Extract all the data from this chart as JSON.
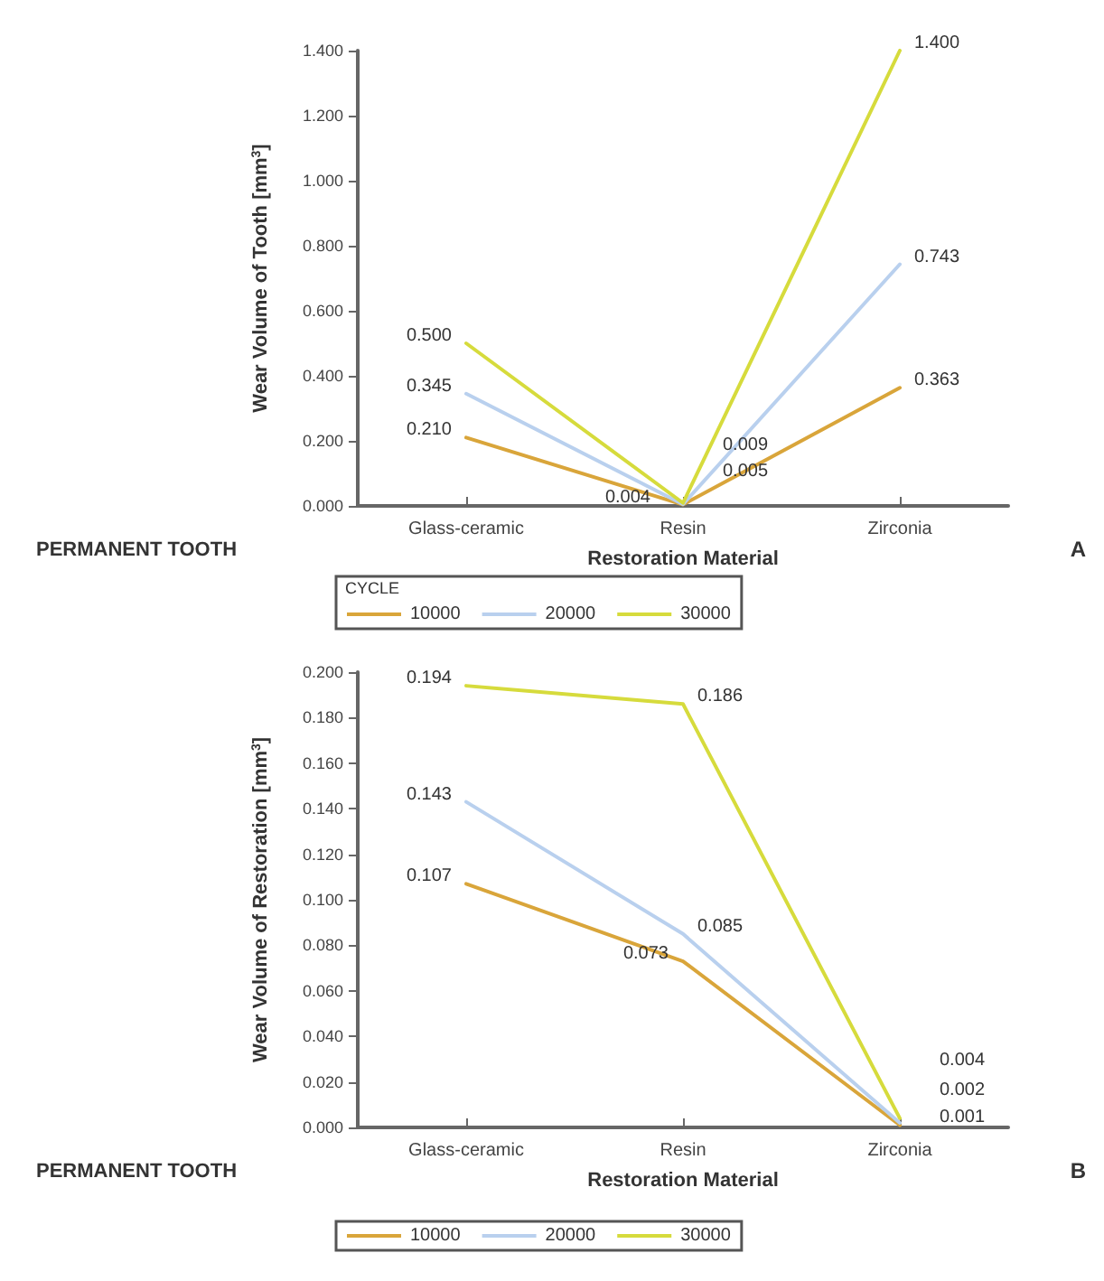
{
  "chart_data": [
    {
      "type": "line",
      "xlabel": "Restoration Material",
      "ylabel": "Wear Volume of Tooth [mm$^{3}$]",
      "legend_title": "CYCLE",
      "annotations": [
        "PERMANENT TOOTH",
        "A"
      ],
      "categories": [
        "Glass-ceramic",
        "Resin",
        "Zirconia"
      ],
      "series": [
        {
          "name": "10000",
          "color": "#d9a53a",
          "values": [
            0.21,
            0.004,
            0.363
          ]
        },
        {
          "name": "20000",
          "color": "#b9d0ee",
          "values": [
            0.345,
            0.005,
            0.743
          ]
        },
        {
          "name": "30000",
          "color": "#d6db3c",
          "values": [
            0.5,
            0.009,
            1.4
          ]
        }
      ],
      "ylim": [
        0,
        1.4
      ],
      "yticks": [
        {
          "value": 0,
          "label": "0.000"
        },
        {
          "value": 0.2,
          "label": "0.200"
        },
        {
          "value": 0.4,
          "label": "0.400"
        },
        {
          "value": 0.6,
          "label": "0.600"
        },
        {
          "value": 0.8,
          "label": "0.800"
        },
        {
          "value": 1,
          "label": "1.000"
        },
        {
          "value": 1.2,
          "label": "1.200"
        },
        {
          "value": 1.4,
          "label": "1.400"
        }
      ],
      "value_labels": [
        [
          "0.210",
          "0.004",
          "0.363"
        ],
        [
          "0.345",
          "0.005",
          "0.743"
        ],
        [
          "0.500",
          "0.009",
          "1.400"
        ]
      ],
      "legend": "bottom",
      "grid": false,
      "marker": "none",
      "line_style": "solid"
    },
    {
      "type": "line",
      "xlabel": "Restoration Material",
      "ylabel": "Wear Volume of Restoration [mm$^{3}$]",
      "annotations": [
        "PERMANENT TOOTH",
        "B"
      ],
      "categories": [
        "Glass-ceramic",
        "Resin",
        "Zirconia"
      ],
      "series": [
        {
          "name": "10000",
          "color": "#d9a53a",
          "values": [
            0.107,
            0.073,
            0.001
          ]
        },
        {
          "name": "20000",
          "color": "#b9d0ee",
          "values": [
            0.143,
            0.085,
            0.002
          ]
        },
        {
          "name": "30000",
          "color": "#d6db3c",
          "values": [
            0.194,
            0.186,
            0.004
          ]
        }
      ],
      "ylim": [
        0,
        0.2
      ],
      "yticks": [
        {
          "value": 0,
          "label": "0.000"
        },
        {
          "value": 0.02,
          "label": "0.020"
        },
        {
          "value": 0.04,
          "label": "0.040"
        },
        {
          "value": 0.06,
          "label": "0.060"
        },
        {
          "value": 0.08,
          "label": "0.080"
        },
        {
          "value": 0.1,
          "label": "0.100"
        },
        {
          "value": 0.12,
          "label": "0.120"
        },
        {
          "value": 0.14,
          "label": "0.140"
        },
        {
          "value": 0.16,
          "label": "0.160"
        },
        {
          "value": 0.18,
          "label": "0.180"
        },
        {
          "value": 0.2,
          "label": "0.200"
        }
      ],
      "value_labels": [
        [
          "0.107",
          "0.073",
          "0.001"
        ],
        [
          "0.143",
          "0.085",
          "0.002"
        ],
        [
          "0.194",
          "0.186",
          "0.004"
        ]
      ],
      "legend": "bottom",
      "grid": false,
      "marker": "none",
      "line_style": "solid"
    }
  ]
}
